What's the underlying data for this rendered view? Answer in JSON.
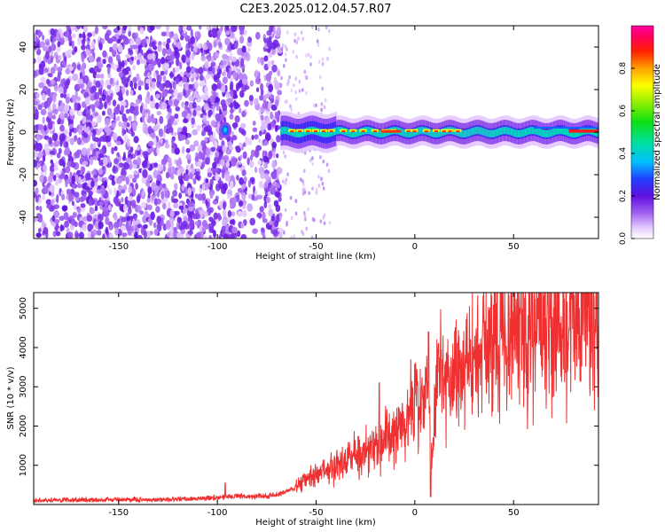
{
  "figure_title": "C2E3.2025.012.04.57.R07",
  "chart_data": [
    {
      "type": "heatmap",
      "title": "C2E3.2025.012.04.57.R07",
      "xlabel": "Height of straight line (km)",
      "ylabel": "Frequency (Hz)",
      "xlim": [
        -193,
        93
      ],
      "ylim": [
        -50,
        50
      ],
      "xticks": [
        -150,
        -100,
        -50,
        0,
        50
      ],
      "yticks": [
        -40,
        -20,
        0,
        20,
        40
      ],
      "colorbar": {
        "label": "Normalized spectral amplitude",
        "range": [
          0,
          1
        ],
        "ticks": [
          0.0,
          0.2,
          0.4,
          0.6,
          0.8
        ],
        "tick_labels": [
          "0.0",
          "0.2",
          "0.4",
          "0.6",
          "0.8"
        ],
        "colormap": "rainbow (white → violet → blue → cyan → green → yellow → red → magenta)"
      },
      "regions": [
        {
          "description": "noise (low amplitude speckle)",
          "x_range": [
            -193,
            -68
          ],
          "amplitude": 0.1
        },
        {
          "description": "isolated blob",
          "x": -96,
          "y": 1,
          "amplitude": 0.35
        },
        {
          "description": "signal band",
          "x_range": [
            -68,
            93
          ],
          "y_center": 0,
          "amplitude": 0.45
        }
      ],
      "grid": false
    },
    {
      "type": "line",
      "xlabel": "Height of straight line (km)",
      "ylabel": "SNR (10 * v/v)",
      "xlim": [
        -193,
        93
      ],
      "ylim": [
        0,
        5400
      ],
      "xticks": [
        -150,
        -100,
        -50,
        0,
        50
      ],
      "yticks": [
        1000,
        2000,
        3000,
        4000,
        5000
      ],
      "series_color": "#f03030",
      "grid": false,
      "series": [
        {
          "x": [
            -193,
            -180,
            -160,
            -140,
            -120,
            -100,
            -90,
            -80,
            -70,
            -62,
            -55,
            -50,
            -45,
            -40,
            -35,
            -30,
            -25,
            -20,
            -15,
            -10,
            -5,
            0,
            5,
            7,
            9,
            11,
            15,
            20,
            25,
            30,
            35,
            40,
            45,
            50,
            55,
            60,
            65,
            70,
            75,
            80,
            85,
            90,
            93
          ],
          "values": [
            100,
            110,
            120,
            120,
            130,
            180,
            220,
            200,
            240,
            400,
            600,
            750,
            950,
            1050,
            1150,
            1300,
            1350,
            1450,
            1700,
            1850,
            2100,
            2500,
            2850,
            3100,
            1300,
            3400,
            3100,
            3400,
            3600,
            3800,
            3950,
            4100,
            4200,
            4350,
            4450,
            4550,
            4650,
            4700,
            4800,
            4850,
            4900,
            5000,
            4950
          ]
        }
      ],
      "spikes": [
        {
          "x": -18,
          "y": 3100
        },
        {
          "x": 7,
          "y": 4400
        },
        {
          "x": 12,
          "y": 4100
        },
        {
          "x": 8,
          "y": 200
        },
        {
          "x": -96,
          "y": 550
        }
      ]
    }
  ]
}
